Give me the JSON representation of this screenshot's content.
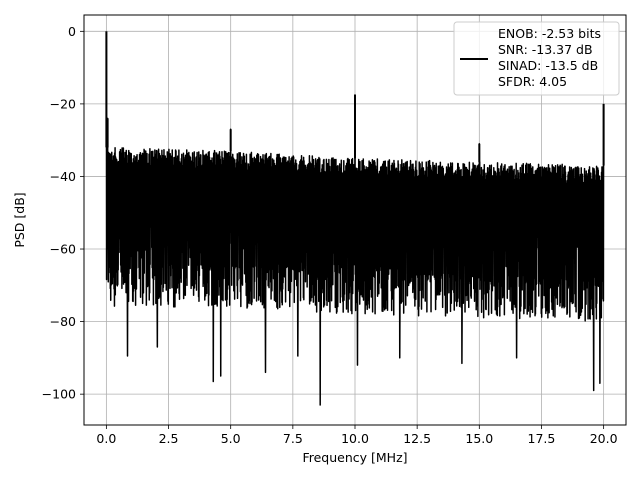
{
  "chart_data": {
    "type": "line",
    "title": "",
    "xlabel": "Frequency [MHz]",
    "ylabel": "PSD [dB]",
    "xlim": [
      -0.9,
      20.9
    ],
    "ylim": [
      -108.5,
      4.5
    ],
    "xticks": [
      0.0,
      2.5,
      5.0,
      7.5,
      10.0,
      12.5,
      15.0,
      17.5,
      20.0
    ],
    "xtick_labels": [
      "0.0",
      "2.5",
      "5.0",
      "7.5",
      "10.0",
      "12.5",
      "15.0",
      "17.5",
      "20.0"
    ],
    "yticks": [
      0,
      -20,
      -40,
      -60,
      -80,
      -100
    ],
    "ytick_labels": [
      "0",
      "−20",
      "−40",
      "−60",
      "−80",
      "−100"
    ],
    "grid": true,
    "legend_position": "top-right",
    "line_color": "#000000",
    "series": [
      {
        "name": "ENOB: -2.53 bits\nSNR: -13.37 dB\nSINAD: -13.5 dB\nSFDR: 4.05",
        "noise_band": {
          "x_range": [
            0.0,
            20.0
          ],
          "upper_envelope": [
            [
              0.1,
              -32
            ],
            [
              5,
              -33
            ],
            [
              10,
              -35
            ],
            [
              15,
              -36
            ],
            [
              20,
              -37
            ]
          ],
          "lower_envelope": [
            [
              0.1,
              -80
            ],
            [
              5,
              -80
            ],
            [
              10,
              -82
            ],
            [
              15,
              -83
            ],
            [
              20,
              -84
            ]
          ]
        },
        "peaks": [
          {
            "x": 0.0,
            "y": 0.0
          },
          {
            "x": 0.05,
            "y": -24.0
          },
          {
            "x": 5.0,
            "y": -27.0
          },
          {
            "x": 10.0,
            "y": -17.5
          },
          {
            "x": 15.0,
            "y": -31.0
          },
          {
            "x": 20.0,
            "y": -20.0
          }
        ],
        "dips": [
          {
            "x": 0.85,
            "y": -89.5
          },
          {
            "x": 2.05,
            "y": -87.0
          },
          {
            "x": 4.3,
            "y": -96.5
          },
          {
            "x": 4.6,
            "y": -95.0
          },
          {
            "x": 6.4,
            "y": -94.0
          },
          {
            "x": 7.7,
            "y": -89.5
          },
          {
            "x": 8.6,
            "y": -103.0
          },
          {
            "x": 10.1,
            "y": -92.0
          },
          {
            "x": 11.8,
            "y": -90.0
          },
          {
            "x": 14.3,
            "y": -91.5
          },
          {
            "x": 16.5,
            "y": -90.0
          },
          {
            "x": 19.6,
            "y": -99.0
          },
          {
            "x": 19.85,
            "y": -97.0
          }
        ]
      }
    ],
    "legend_lines": [
      "ENOB: -2.53 bits",
      "SNR: -13.37 dB",
      "SINAD: -13.5 dB",
      "SFDR: 4.05"
    ]
  }
}
